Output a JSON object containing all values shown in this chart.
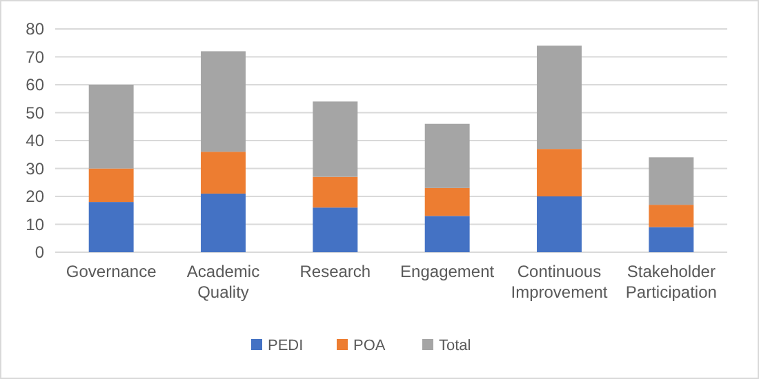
{
  "chart_data": {
    "type": "bar",
    "stacked": true,
    "categories": [
      "Governance",
      "Academic Quality",
      "Research",
      "Engagement",
      "Continuous Improvement",
      "Stakeholder Participation"
    ],
    "series": [
      {
        "name": "PEDI",
        "color": "#4472c4",
        "values": [
          18,
          21,
          16,
          13,
          20,
          9
        ]
      },
      {
        "name": "POA",
        "color": "#ed7d31",
        "values": [
          12,
          15,
          11,
          10,
          17,
          8
        ]
      },
      {
        "name": "Total",
        "color": "#a5a5a5",
        "values": [
          30,
          36,
          27,
          23,
          37,
          17
        ]
      }
    ],
    "ylim": [
      0,
      80
    ],
    "yticks": [
      0,
      10,
      20,
      30,
      40,
      50,
      60,
      70,
      80
    ],
    "grid": "y",
    "legend": "bottom"
  }
}
